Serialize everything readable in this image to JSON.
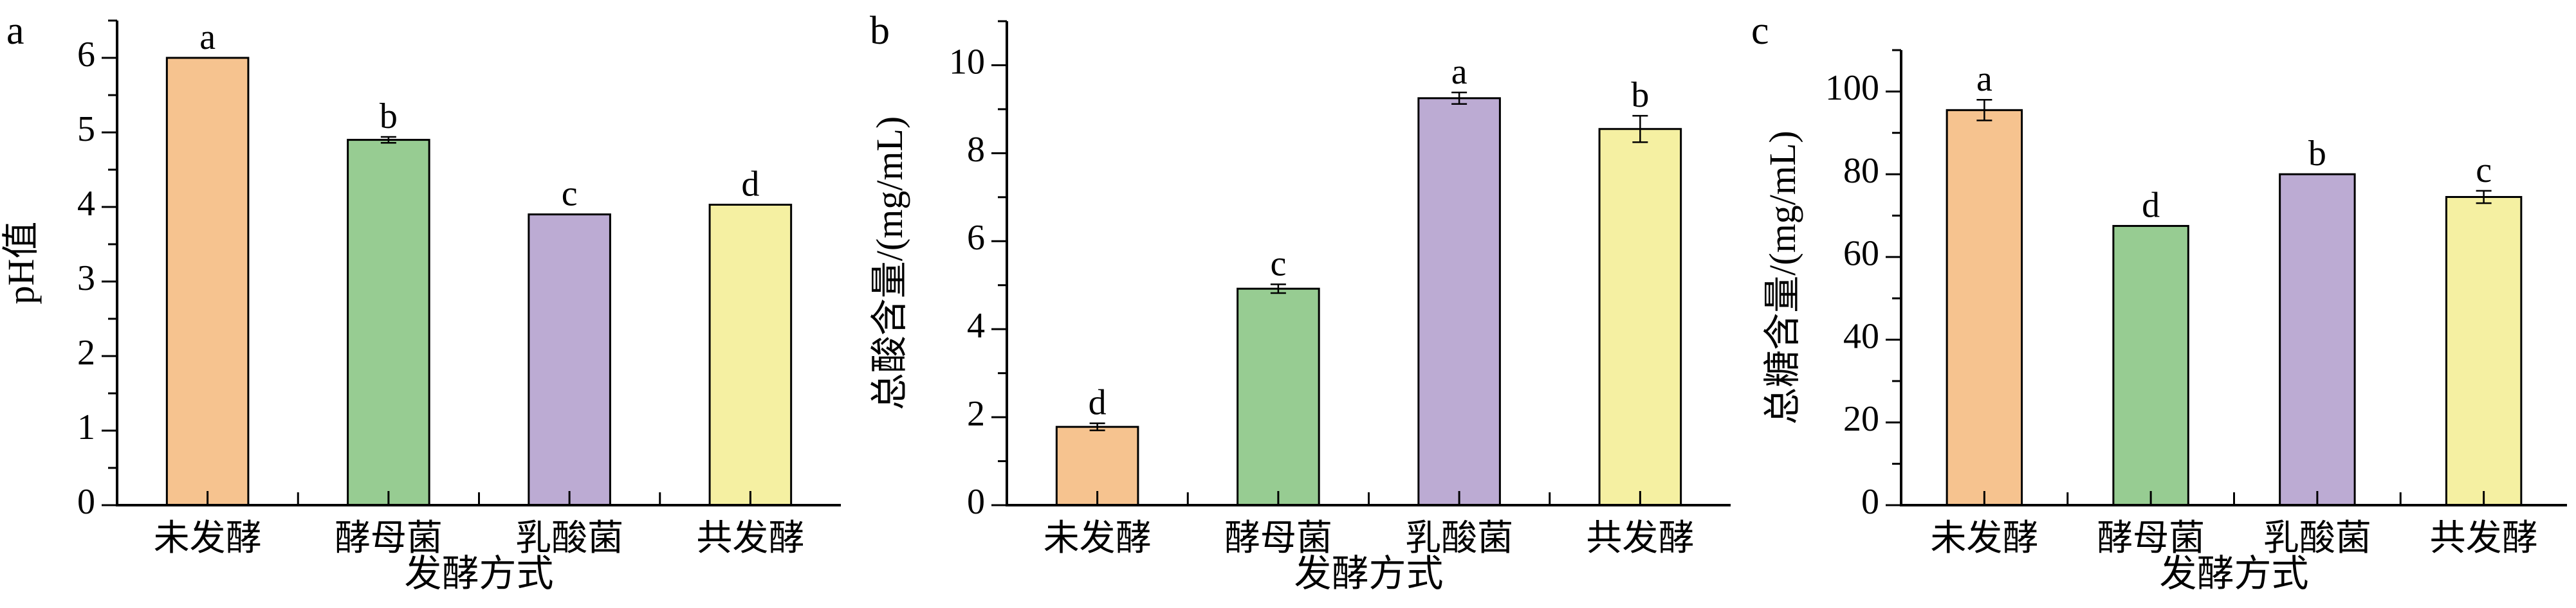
{
  "figure": {
    "background": "#FFFFFF"
  },
  "colors": {
    "bar_fills": [
      "#F6C38F",
      "#97CC92",
      "#BCABD3",
      "#F5F0A2"
    ],
    "bar_stroke": "#000000",
    "axis": "#000000",
    "text": "#000000"
  },
  "chart_data": [
    {
      "type": "bar",
      "panel_label": "a",
      "title": "",
      "xlabel": "发酵方式",
      "ylabel": "pH值",
      "categories": [
        "未发酵",
        "酵母菌",
        "乳酸菌",
        "共发酵"
      ],
      "values": [
        6.0,
        4.9,
        3.9,
        4.03
      ],
      "errors": [
        0,
        0.04,
        0,
        0
      ],
      "bar_labels": [
        "a",
        "b",
        "c",
        "d"
      ],
      "ylim": [
        0,
        6.5
      ],
      "yticks": [
        0,
        1,
        2,
        3,
        4,
        5,
        6
      ],
      "yminor_step": 0.5,
      "grid": false,
      "legend": "none"
    },
    {
      "type": "bar",
      "panel_label": "b",
      "title": "",
      "xlabel": "发酵方式",
      "ylabel": "总酸含量/(mg/mL)",
      "categories": [
        "未发酵",
        "酵母菌",
        "乳酸菌",
        "共发酵"
      ],
      "values": [
        1.78,
        4.92,
        9.25,
        8.55
      ],
      "errors": [
        0.08,
        0.1,
        0.13,
        0.3
      ],
      "bar_labels": [
        "d",
        "c",
        "a",
        "b"
      ],
      "ylim": [
        0,
        11
      ],
      "yticks": [
        0,
        2,
        4,
        6,
        8,
        10
      ],
      "yminor_step": 1,
      "grid": false,
      "legend": "none"
    },
    {
      "type": "bar",
      "panel_label": "c",
      "title": "",
      "xlabel": "发酵方式",
      "ylabel": "总糖含量/(mg/mL)",
      "categories": [
        "未发酵",
        "酵母菌",
        "乳酸菌",
        "共发酵"
      ],
      "values": [
        95.5,
        67.5,
        80,
        74.5
      ],
      "errors": [
        2.5,
        0,
        0,
        1.5
      ],
      "bar_labels": [
        "a",
        "d",
        "b",
        "c"
      ],
      "ylim": [
        0,
        110
      ],
      "yticks": [
        0,
        20,
        40,
        60,
        80,
        100
      ],
      "yminor_step": 10,
      "grid": false,
      "legend": "none"
    }
  ]
}
